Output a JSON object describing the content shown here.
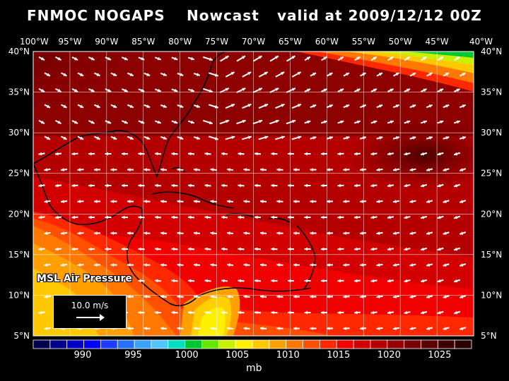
{
  "header": {
    "model": "FNMOC NOGAPS",
    "run": "Nowcast",
    "valid": "valid at 2009/12/12 00Z"
  },
  "axes": {
    "lon_top": [
      "100°W",
      "95°W",
      "90°W",
      "85°W",
      "80°W",
      "75°W",
      "70°W",
      "65°W",
      "60°W",
      "55°W",
      "50°W",
      "45°W",
      "40°W"
    ],
    "lat_left": [
      "40°N",
      "35°N",
      "30°N",
      "25°N",
      "20°N",
      "15°N",
      "10°N",
      "5°N"
    ],
    "lat_right": [
      "40°N",
      "35°N",
      "30°N",
      "25°N",
      "20°N",
      "15°N",
      "10°N",
      "5°N"
    ]
  },
  "map": {
    "field_label": "MSL Air Pressure",
    "scale_label": "10.0 m/s"
  },
  "colorbar": {
    "unit": "mb",
    "tick_labels": [
      "990",
      "995",
      "1000",
      "1005",
      "1010",
      "1015",
      "1020",
      "1025"
    ],
    "colors": [
      "#000050",
      "#00008c",
      "#0000c8",
      "#0000ff",
      "#1e3cff",
      "#2870ff",
      "#3ca0ff",
      "#50c8ff",
      "#00e0c0",
      "#00c832",
      "#64e600",
      "#c8f000",
      "#fff000",
      "#ffc800",
      "#ffa000",
      "#ff7800",
      "#ff5000",
      "#ff2800",
      "#f00000",
      "#d20000",
      "#b40000",
      "#960000",
      "#780000",
      "#5a0000",
      "#3c0000",
      "#280000"
    ]
  }
}
